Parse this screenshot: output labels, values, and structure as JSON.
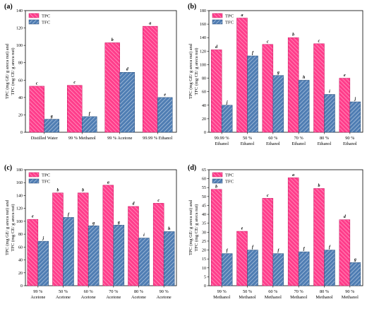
{
  "colors": {
    "tpc": "#ff3d8b",
    "tfc": "#4f7db3",
    "tpc_hatch": "#ffb2d2",
    "tfc_hatch": "#c6d6ea"
  },
  "chart_data": [
    {
      "type": "bar",
      "label": "(a)",
      "categories": [
        "Distilled Water",
        "99 % Methanol",
        "99 % Acetone",
        "99.99 % Ethanol"
      ],
      "ylabel_lines": [
        "TPC (mg GE/ g areca nut) and",
        "TFC (mg CE/ g areca nut)"
      ],
      "ylim": [
        0,
        140
      ],
      "yticks": [
        0,
        20,
        40,
        60,
        80,
        100,
        120,
        140
      ],
      "legend": "top-left",
      "series": [
        {
          "name": "TPC",
          "values": [
            53,
            54,
            103,
            122
          ],
          "letters": [
            "c",
            "c",
            "b",
            "a"
          ]
        },
        {
          "name": "TFC",
          "values": [
            15,
            18,
            69,
            40
          ],
          "letters": [
            "g",
            "f",
            "d",
            "e"
          ]
        }
      ]
    },
    {
      "type": "bar",
      "label": "(b)",
      "categories": [
        "99.99 %|Ethanol",
        "50 %|Ethanol",
        "60 %|Ethanol",
        "70 %|Ethanol",
        "80 %|Ethanol",
        "90 %|Ethanol"
      ],
      "ylabel_lines": [
        "TPC (mg GE/ g areca nut) and",
        "TFC (mg CE/ g areca nut)"
      ],
      "ylim": [
        0,
        180
      ],
      "yticks": [
        0,
        20,
        40,
        60,
        80,
        100,
        120,
        140,
        160,
        180
      ],
      "legend": "top-left",
      "series": [
        {
          "name": "TPC",
          "values": [
            122,
            169,
            130,
            140,
            131,
            80
          ],
          "letters": [
            "d",
            "a",
            "c",
            "b",
            "c",
            "e"
          ]
        },
        {
          "name": "TFC",
          "values": [
            40,
            113,
            84,
            77,
            56,
            45
          ],
          "letters": [
            "j",
            "f",
            "g",
            "h",
            "i",
            "j"
          ]
        }
      ]
    },
    {
      "type": "bar",
      "label": "(c)",
      "categories": [
        "99 %|Acetone",
        "50 %|Acetone",
        "60 %|Acetone",
        "70 %|Acetone",
        "80 %|Acetone",
        "90 %|Acetone"
      ],
      "ylabel_lines": [
        "TPC (mg GE/ g areca nut) and",
        "TFC (mg CE/ g areca nut)"
      ],
      "ylim": [
        0,
        180
      ],
      "yticks": [
        0,
        20,
        40,
        60,
        80,
        100,
        120,
        140,
        160,
        180
      ],
      "legend": "top-left",
      "series": [
        {
          "name": "TPC",
          "values": [
            103,
            144,
            144,
            156,
            123,
            128
          ],
          "letters": [
            "e",
            "b",
            "b",
            "a",
            "d",
            "c"
          ]
        },
        {
          "name": "TFC",
          "values": [
            69,
            106,
            93,
            94,
            74,
            84
          ],
          "letters": [
            "j",
            "f",
            "g",
            "g",
            "i",
            "h"
          ]
        }
      ]
    },
    {
      "type": "bar",
      "label": "(d)",
      "categories": [
        "99 %|Methanol",
        "50 %|Methanol",
        "60 %|Methanol",
        "70 %|Methanol",
        "80 %|Methanol",
        "90 %|Methanol"
      ],
      "ylabel_lines": [
        "TPC (mg GE/ g areca nut) and",
        "TFC (mg CE/ g areca nut)"
      ],
      "ylim": [
        0,
        65
      ],
      "yticks": [
        0,
        5,
        10,
        15,
        20,
        25,
        30,
        35,
        40,
        45,
        50,
        55,
        60,
        65
      ],
      "legend": "top-left",
      "series": [
        {
          "name": "TPC",
          "values": [
            54,
            30.5,
            49,
            60.5,
            54.5,
            37
          ],
          "letters": [
            "b",
            "e",
            "c",
            "a",
            "b",
            "d"
          ]
        },
        {
          "name": "TFC",
          "values": [
            18,
            20,
            18,
            19,
            20,
            13
          ],
          "letters": [
            "f",
            "f",
            "f",
            "f",
            "f",
            "g"
          ]
        }
      ]
    }
  ]
}
